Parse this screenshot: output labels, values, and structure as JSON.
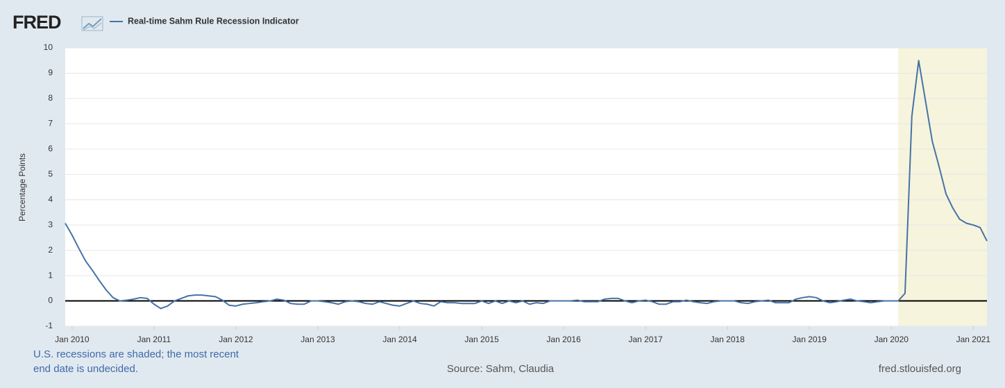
{
  "chart_data": {
    "type": "line",
    "logo": "FRED",
    "title": "Real-time Sahm Rule Recession Indicator",
    "ylabel": "Percentage Points",
    "note": [
      "U.S. recessions are shaded; the most recent",
      "end date is undecided."
    ],
    "source": "Source: Sahm, Claudia",
    "site": "fred.stlouisfed.org",
    "recession_start": "2020-02",
    "x": [
      "2009-12",
      "2010-01",
      "2010-02",
      "2010-03",
      "2010-04",
      "2010-05",
      "2010-06",
      "2010-07",
      "2010-08",
      "2010-09",
      "2010-10",
      "2010-11",
      "2010-12",
      "2011-01",
      "2011-02",
      "2011-03",
      "2011-04",
      "2011-05",
      "2011-06",
      "2011-07",
      "2011-08",
      "2011-09",
      "2011-10",
      "2011-11",
      "2011-12",
      "2012-01",
      "2012-02",
      "2012-03",
      "2012-04",
      "2012-05",
      "2012-06",
      "2012-07",
      "2012-08",
      "2012-09",
      "2012-10",
      "2012-11",
      "2012-12",
      "2013-01",
      "2013-02",
      "2013-03",
      "2013-04",
      "2013-05",
      "2013-06",
      "2013-07",
      "2013-08",
      "2013-09",
      "2013-10",
      "2013-11",
      "2013-12",
      "2014-01",
      "2014-02",
      "2014-03",
      "2014-04",
      "2014-05",
      "2014-06",
      "2014-07",
      "2014-08",
      "2014-09",
      "2014-10",
      "2014-11",
      "2014-12",
      "2015-01",
      "2015-02",
      "2015-03",
      "2015-04",
      "2015-05",
      "2015-06",
      "2015-07",
      "2015-08",
      "2015-09",
      "2015-10",
      "2015-11",
      "2015-12",
      "2016-01",
      "2016-02",
      "2016-03",
      "2016-04",
      "2016-05",
      "2016-06",
      "2016-07",
      "2016-08",
      "2016-09",
      "2016-10",
      "2016-11",
      "2016-12",
      "2017-01",
      "2017-02",
      "2017-03",
      "2017-04",
      "2017-05",
      "2017-06",
      "2017-07",
      "2017-08",
      "2017-09",
      "2017-10",
      "2017-11",
      "2017-12",
      "2018-01",
      "2018-02",
      "2018-03",
      "2018-04",
      "2018-05",
      "2018-06",
      "2018-07",
      "2018-08",
      "2018-09",
      "2018-10",
      "2018-11",
      "2018-12",
      "2019-01",
      "2019-02",
      "2019-03",
      "2019-04",
      "2019-05",
      "2019-06",
      "2019-07",
      "2019-08",
      "2019-09",
      "2019-10",
      "2019-11",
      "2019-12",
      "2020-01",
      "2020-02",
      "2020-03",
      "2020-04",
      "2020-05",
      "2020-06",
      "2020-07",
      "2020-08",
      "2020-09",
      "2020-10",
      "2020-11",
      "2020-12",
      "2021-01",
      "2021-02",
      "2021-03"
    ],
    "series": [
      {
        "name": "Real-time Sahm Rule Recession Indicator",
        "color": "#4572a7",
        "values": [
          3.07,
          2.6,
          2.07,
          1.57,
          1.2,
          0.8,
          0.43,
          0.13,
          0.0,
          0.03,
          0.07,
          0.13,
          0.1,
          -0.13,
          -0.3,
          -0.2,
          0.0,
          0.1,
          0.2,
          0.23,
          0.23,
          0.2,
          0.17,
          0.03,
          -0.17,
          -0.2,
          -0.13,
          -0.1,
          -0.07,
          -0.03,
          0.0,
          0.07,
          0.03,
          -0.1,
          -0.13,
          -0.13,
          0.0,
          0.0,
          -0.03,
          -0.07,
          -0.13,
          -0.03,
          0.0,
          -0.03,
          -0.1,
          -0.13,
          -0.03,
          -0.1,
          -0.17,
          -0.2,
          -0.1,
          0.0,
          -0.1,
          -0.13,
          -0.2,
          -0.03,
          -0.07,
          -0.07,
          -0.1,
          -0.1,
          -0.1,
          0.0,
          -0.1,
          0.0,
          -0.1,
          0.0,
          -0.07,
          0.0,
          -0.13,
          -0.07,
          -0.1,
          0.0,
          0.0,
          0.0,
          0.0,
          0.03,
          -0.03,
          -0.03,
          -0.03,
          0.07,
          0.1,
          0.1,
          0.0,
          -0.07,
          0.0,
          0.03,
          -0.03,
          -0.13,
          -0.13,
          -0.03,
          -0.03,
          0.03,
          -0.03,
          -0.07,
          -0.1,
          -0.03,
          0.0,
          0.0,
          0.0,
          -0.07,
          -0.1,
          -0.03,
          0.0,
          0.03,
          -0.07,
          -0.07,
          -0.07,
          0.07,
          0.13,
          0.17,
          0.13,
          0.0,
          -0.07,
          -0.03,
          0.03,
          0.07,
          0.0,
          -0.03,
          -0.07,
          -0.03,
          0.0,
          0.0,
          0.0,
          0.3,
          7.3,
          9.5,
          7.9,
          6.3,
          5.3,
          4.23,
          3.67,
          3.23,
          3.07,
          3.0,
          2.9,
          2.37
        ]
      }
    ],
    "xlim": [
      "2009-12",
      "2021-03"
    ],
    "xticks": [
      {
        "value": "2010-01",
        "label": "Jan 2010"
      },
      {
        "value": "2011-01",
        "label": "Jan 2011"
      },
      {
        "value": "2012-01",
        "label": "Jan 2012"
      },
      {
        "value": "2013-01",
        "label": "Jan 2013"
      },
      {
        "value": "2014-01",
        "label": "Jan 2014"
      },
      {
        "value": "2015-01",
        "label": "Jan 2015"
      },
      {
        "value": "2016-01",
        "label": "Jan 2016"
      },
      {
        "value": "2017-01",
        "label": "Jan 2017"
      },
      {
        "value": "2018-01",
        "label": "Jan 2018"
      },
      {
        "value": "2019-01",
        "label": "Jan 2019"
      },
      {
        "value": "2020-01",
        "label": "Jan 2020"
      },
      {
        "value": "2021-01",
        "label": "Jan 2021"
      }
    ],
    "ylim": [
      -1,
      10
    ],
    "yticks": [
      -1,
      0,
      1,
      2,
      3,
      4,
      5,
      6,
      7,
      8,
      9,
      10
    ],
    "grid": true
  }
}
